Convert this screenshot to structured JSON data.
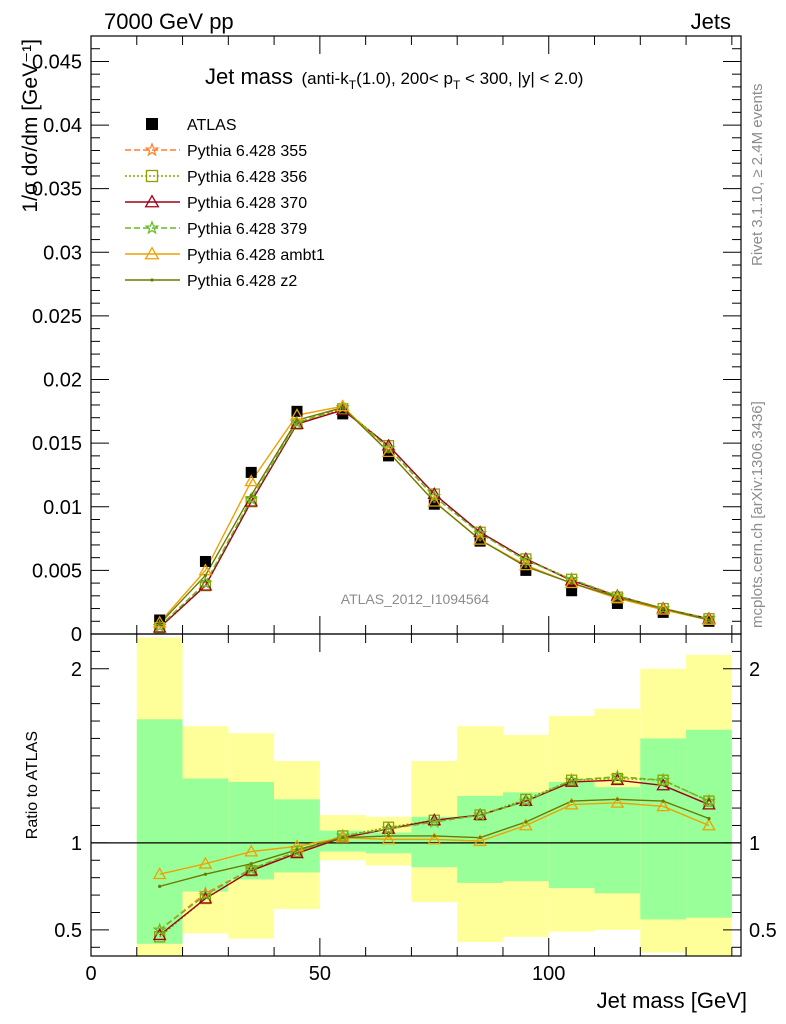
{
  "header": {
    "left": "7000 GeV pp",
    "right": "Jets"
  },
  "title": {
    "main": "Jet mass",
    "detail_pre": "(anti-k",
    "detail_sub1": "T",
    "detail_mid": "(1.0), 200< p",
    "detail_sub2": "T",
    "detail_post": " < 300, |y| < 2.0)"
  },
  "side_labels": {
    "rivet": "Rivet 3.1.10, ≥ 2.4M events",
    "mcplots": "mcplots.cern.ch [arXiv:1306.3436]"
  },
  "analysis_id": "ATLAS_2012_I1094564",
  "colors": {
    "band_outer": "#ffff99",
    "band_inner": "#99ff99",
    "atlas": "#000000"
  },
  "chart_data": [
    {
      "type": "line",
      "panel": "main",
      "ylabel": "1/σ dσ/dm [GeV⁻¹]",
      "xlim": [
        0,
        142
      ],
      "ylim": [
        0,
        0.047
      ],
      "yticks": [
        0,
        0.005,
        0.01,
        0.015,
        0.02,
        0.025,
        0.03,
        0.035,
        0.04,
        0.045
      ],
      "ytick_labels": [
        "0",
        "0.005",
        "0.01",
        "0.015",
        "0.02",
        "0.025",
        "0.03",
        "0.035",
        "0.04",
        "0.045"
      ],
      "x": [
        15,
        25,
        35,
        45,
        55,
        65,
        75,
        85,
        95,
        105,
        115,
        125,
        135
      ],
      "series": [
        {
          "name": "ATLAS",
          "marker": "square",
          "color": "#000000",
          "dash": "",
          "values": [
            0.0011,
            0.0057,
            0.0127,
            0.0175,
            0.0173,
            0.014,
            0.0102,
            0.0073,
            0.005,
            0.0034,
            0.0024,
            0.0017,
            0.001
          ]
        },
        {
          "name": "Pythia 6.428 355",
          "marker": "star",
          "color": "#ff7f2a",
          "dash": "6,3",
          "values": [
            0.0006,
            0.004,
            0.0106,
            0.0166,
            0.0178,
            0.0146,
            0.0108,
            0.0079,
            0.0058,
            0.0043,
            0.003,
            0.002,
            0.0012
          ]
        },
        {
          "name": "Pythia 6.428 356",
          "marker": "opensquare",
          "color": "#8fa000",
          "dash": "2,2",
          "values": [
            0.0005,
            0.0038,
            0.0104,
            0.0165,
            0.0177,
            0.0148,
            0.011,
            0.008,
            0.0059,
            0.0043,
            0.0029,
            0.002,
            0.0012
          ]
        },
        {
          "name": "Pythia 6.428 370",
          "marker": "opentriangle",
          "color": "#a0001a",
          "dash": "",
          "values": [
            0.0005,
            0.0038,
            0.0104,
            0.0165,
            0.0176,
            0.0148,
            0.011,
            0.008,
            0.0059,
            0.0042,
            0.003,
            0.002,
            0.0012
          ]
        },
        {
          "name": "Pythia 6.428 379",
          "marker": "star",
          "color": "#66bb22",
          "dash": "6,3",
          "values": [
            0.0006,
            0.004,
            0.0106,
            0.0166,
            0.0178,
            0.0146,
            0.0108,
            0.0079,
            0.0058,
            0.0043,
            0.003,
            0.002,
            0.0012
          ]
        },
        {
          "name": "Pythia 6.428 ambt1",
          "marker": "opentriangle",
          "color": "#f0a000",
          "dash": "",
          "values": [
            0.0009,
            0.005,
            0.012,
            0.0172,
            0.0179,
            0.0143,
            0.0104,
            0.0074,
            0.0054,
            0.004,
            0.0028,
            0.0019,
            0.0011
          ]
        },
        {
          "name": "Pythia 6.428 z2",
          "marker": "dot",
          "color": "#6b7a00",
          "dash": "",
          "values": [
            0.0008,
            0.0046,
            0.0109,
            0.0168,
            0.0178,
            0.0143,
            0.0104,
            0.0074,
            0.0053,
            0.004,
            0.0029,
            0.002,
            0.0011
          ]
        }
      ]
    },
    {
      "type": "line",
      "panel": "ratio",
      "ylabel": "Ratio to ATLAS",
      "xlabel": "Jet mass [GeV]",
      "xlim": [
        0,
        142
      ],
      "ylim": [
        0.35,
        2.2
      ],
      "xticks": [
        0,
        50,
        100
      ],
      "xtick_labels": [
        "0",
        "50",
        "100"
      ],
      "yticks": [
        0.5,
        1,
        2
      ],
      "ytick_labels": [
        "0.5",
        "1",
        "2"
      ],
      "bands": {
        "bin_edges": [
          10,
          20,
          30,
          40,
          50,
          60,
          70,
          80,
          90,
          100,
          110,
          120,
          130,
          140
        ],
        "outer_low": [
          0.35,
          0.48,
          0.45,
          0.62,
          0.9,
          0.87,
          0.66,
          0.43,
          0.46,
          0.49,
          0.5,
          0.37,
          0.35
        ],
        "outer_high": [
          2.18,
          1.67,
          1.63,
          1.47,
          1.16,
          1.15,
          1.47,
          1.67,
          1.62,
          1.73,
          1.77,
          2.0,
          2.08
        ],
        "inner_low": [
          0.42,
          0.72,
          0.79,
          0.83,
          0.95,
          0.94,
          0.86,
          0.77,
          0.78,
          0.74,
          0.71,
          0.56,
          0.57
        ],
        "inner_high": [
          1.71,
          1.37,
          1.35,
          1.25,
          1.07,
          1.06,
          1.15,
          1.27,
          1.29,
          1.35,
          1.32,
          1.6,
          1.65
        ]
      },
      "reference": 1,
      "x": [
        15,
        25,
        35,
        45,
        55,
        65,
        75,
        85,
        95,
        105,
        115,
        125,
        135
      ],
      "series": [
        {
          "name": "Pythia 6.428 355",
          "marker": "star",
          "color": "#ff7f2a",
          "dash": "6,3",
          "values": [
            0.5,
            0.71,
            0.85,
            0.95,
            1.04,
            1.08,
            1.12,
            1.16,
            1.24,
            1.36,
            1.38,
            1.36,
            1.24
          ]
        },
        {
          "name": "Pythia 6.428 356",
          "marker": "opensquare",
          "color": "#8fa000",
          "dash": "2,2",
          "values": [
            0.46,
            0.68,
            0.84,
            0.95,
            1.04,
            1.09,
            1.13,
            1.16,
            1.25,
            1.36,
            1.37,
            1.36,
            1.24
          ]
        },
        {
          "name": "Pythia 6.428 370",
          "marker": "opentriangle",
          "color": "#a0001a",
          "dash": "",
          "values": [
            0.47,
            0.68,
            0.84,
            0.94,
            1.03,
            1.08,
            1.13,
            1.16,
            1.24,
            1.35,
            1.36,
            1.33,
            1.22
          ]
        },
        {
          "name": "Pythia 6.428 379",
          "marker": "star",
          "color": "#66bb22",
          "dash": "6,3",
          "values": [
            0.5,
            0.7,
            0.85,
            0.95,
            1.04,
            1.08,
            1.12,
            1.16,
            1.24,
            1.36,
            1.38,
            1.36,
            1.24
          ]
        },
        {
          "name": "Pythia 6.428 ambt1",
          "marker": "opentriangle",
          "color": "#f0a000",
          "dash": "",
          "values": [
            0.82,
            0.88,
            0.95,
            0.98,
            1.03,
            1.02,
            1.02,
            1.01,
            1.1,
            1.22,
            1.23,
            1.21,
            1.1
          ]
        },
        {
          "name": "Pythia 6.428 z2",
          "marker": "dot",
          "color": "#6b7a00",
          "dash": "",
          "values": [
            0.75,
            0.82,
            0.88,
            0.96,
            1.03,
            1.04,
            1.04,
            1.03,
            1.12,
            1.24,
            1.25,
            1.24,
            1.14
          ]
        }
      ]
    }
  ]
}
